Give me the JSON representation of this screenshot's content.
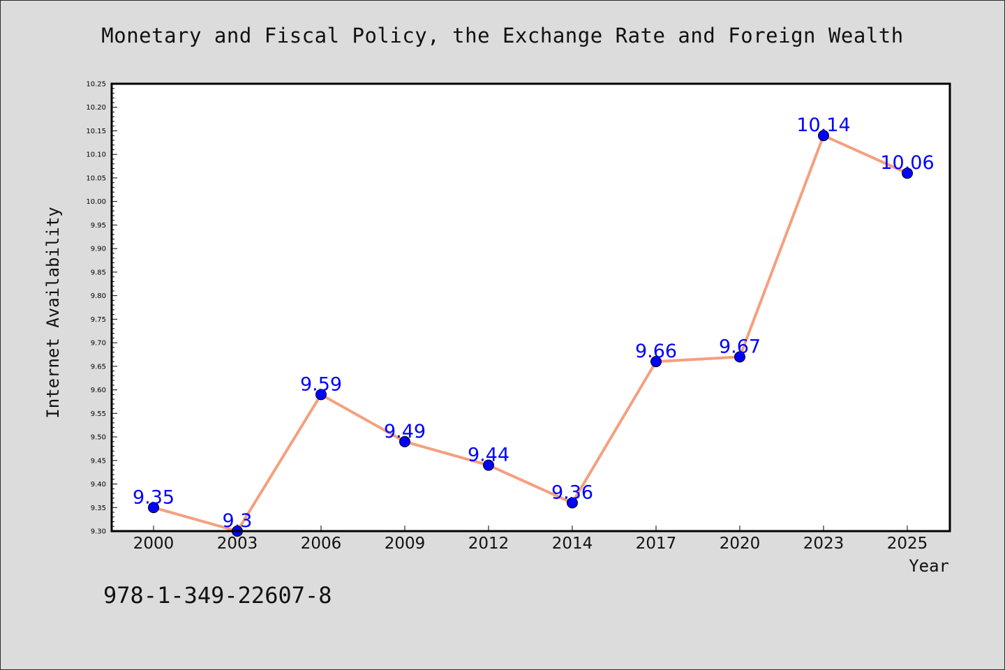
{
  "chart_data": {
    "type": "line",
    "title": "Monetary and Fiscal Policy, the Exchange Rate and Foreign Wealth",
    "xlabel": "Year",
    "ylabel": "Internet Availability",
    "categories": [
      "2000",
      "2003",
      "2006",
      "2009",
      "2012",
      "2014",
      "2017",
      "2020",
      "2023",
      "2025"
    ],
    "series": [
      {
        "values": [
          9.35,
          9.3,
          9.59,
          9.49,
          9.44,
          9.36,
          9.66,
          9.67,
          10.14,
          10.06
        ],
        "labels": [
          "9.35",
          "9.3",
          "9.59",
          "9.49",
          "9.44",
          "9.36",
          "9.66",
          "9.67",
          "10.14",
          "10.06"
        ]
      }
    ],
    "ylim": [
      9.3,
      10.25
    ],
    "yticks": [
      "9.30",
      "9.35",
      "9.40",
      "9.45",
      "9.50",
      "9.55",
      "9.60",
      "9.65",
      "9.70",
      "9.75",
      "9.80",
      "9.85",
      "9.90",
      "9.95",
      "10.00",
      "10.05",
      "10.10",
      "10.15",
      "10.20",
      "10.25"
    ],
    "grid": false,
    "colors": {
      "line": "#f4a07e",
      "marker": "#0000ff",
      "label": "#0000ff",
      "background": "#dcdcdc",
      "plot_background": "#ffffff"
    }
  },
  "footer_text": "978-1-349-22607-8"
}
